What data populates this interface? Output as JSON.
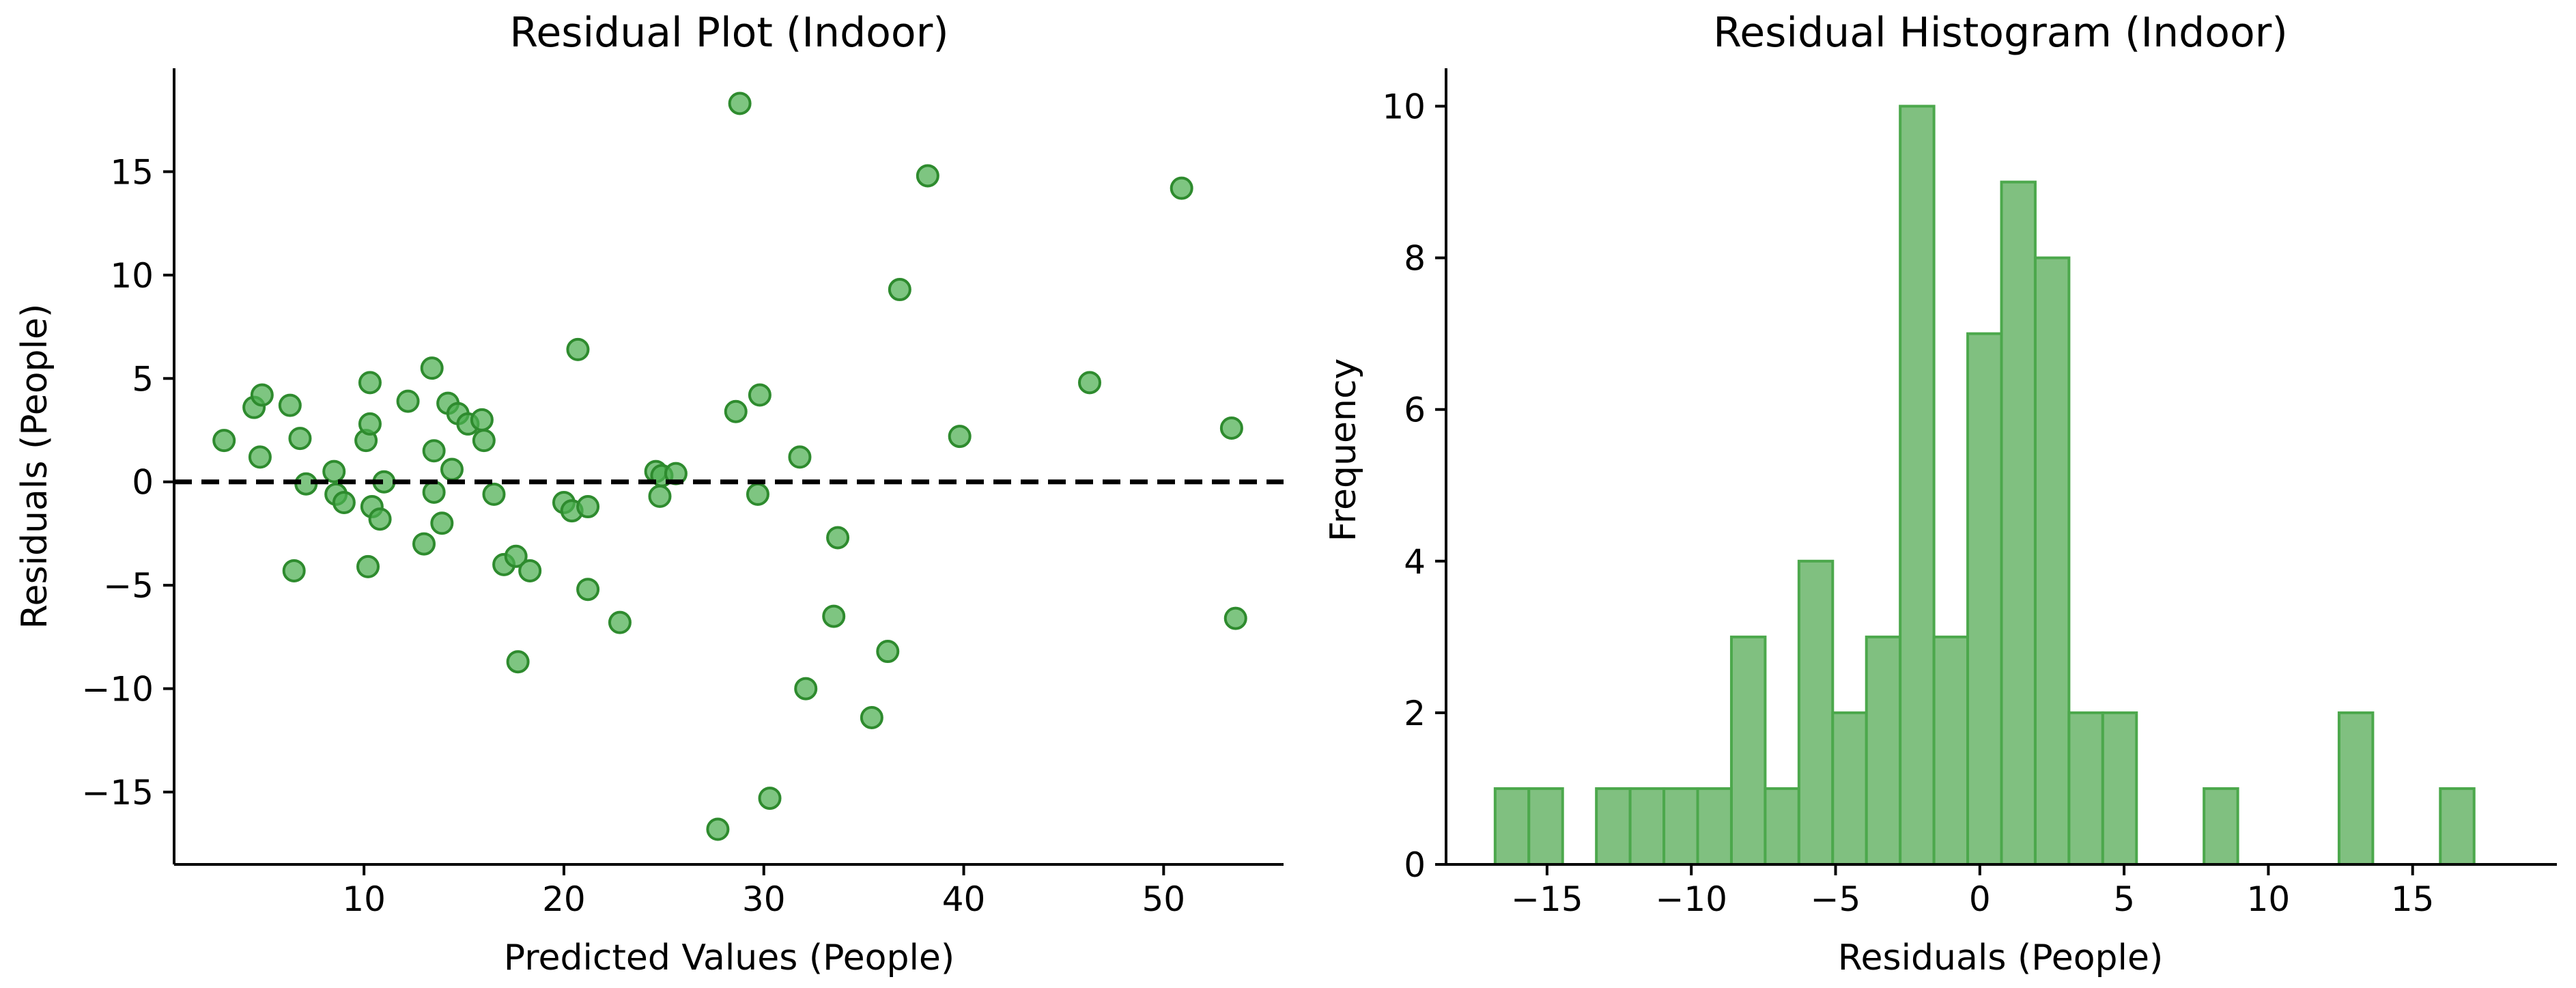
{
  "colors": {
    "marker_fill": "#4CAF50",
    "marker_edge": "#2E8B2E",
    "bar_fill": "#80C080",
    "bar_edge": "#4CA84C",
    "axis": "#000000",
    "reference_line": "#000000"
  },
  "chart_data": [
    {
      "type": "scatter",
      "title": "Residual Plot (Indoor)",
      "xlabel": "Predicted Values (People)",
      "ylabel": "Residuals (People)",
      "xlim": [
        0.5,
        56
      ],
      "ylim": [
        -18.5,
        20
      ],
      "xticks": [
        10,
        20,
        30,
        40,
        50
      ],
      "yticks": [
        -15,
        -10,
        -5,
        0,
        5,
        10,
        15
      ],
      "xtick_labels": [
        "10",
        "20",
        "30",
        "40",
        "50"
      ],
      "ytick_labels": [
        "−15",
        "−10",
        "−5",
        "0",
        "5",
        "10",
        "15"
      ],
      "reference_line": {
        "y": 0,
        "style": "dashed"
      },
      "points": [
        [
          3,
          2
        ],
        [
          4.5,
          3.6
        ],
        [
          4.8,
          1.2
        ],
        [
          4.9,
          4.2
        ],
        [
          6.3,
          3.7
        ],
        [
          6.5,
          -4.3
        ],
        [
          6.8,
          2.1
        ],
        [
          7.1,
          -0.1
        ],
        [
          8.5,
          0.5
        ],
        [
          8.6,
          -0.6
        ],
        [
          9,
          -1
        ],
        [
          10.1,
          2
        ],
        [
          10.2,
          -4.1
        ],
        [
          10.3,
          4.8
        ],
        [
          10.3,
          2.8
        ],
        [
          10.4,
          -1.2
        ],
        [
          10.8,
          -1.8
        ],
        [
          11,
          0
        ],
        [
          12.2,
          3.9
        ],
        [
          13,
          -3
        ],
        [
          13.4,
          5.5
        ],
        [
          13.5,
          1.5
        ],
        [
          13.5,
          -0.5
        ],
        [
          13.9,
          -2
        ],
        [
          14.2,
          3.8
        ],
        [
          14.4,
          0.6
        ],
        [
          14.7,
          3.3
        ],
        [
          15.2,
          2.8
        ],
        [
          15.9,
          3
        ],
        [
          16,
          2
        ],
        [
          16.5,
          -0.6
        ],
        [
          17,
          -4
        ],
        [
          17.6,
          -3.6
        ],
        [
          17.7,
          -8.7
        ],
        [
          18.3,
          -4.3
        ],
        [
          20,
          -1
        ],
        [
          20.4,
          -1.4
        ],
        [
          20.7,
          6.4
        ],
        [
          21.2,
          -5.2
        ],
        [
          21.2,
          -1.2
        ],
        [
          22.8,
          -6.8
        ],
        [
          24.6,
          0.5
        ],
        [
          24.8,
          -0.7
        ],
        [
          24.9,
          0.3
        ],
        [
          25.6,
          0.4
        ],
        [
          27.7,
          -16.8
        ],
        [
          28.6,
          3.4
        ],
        [
          28.8,
          18.3
        ],
        [
          29.7,
          -0.6
        ],
        [
          29.8,
          4.2
        ],
        [
          30.3,
          -15.3
        ],
        [
          31.8,
          1.2
        ],
        [
          32.1,
          -10
        ],
        [
          33.5,
          -6.5
        ],
        [
          33.7,
          -2.7
        ],
        [
          35.4,
          -11.4
        ],
        [
          36.2,
          -8.2
        ],
        [
          36.8,
          9.3
        ],
        [
          38.2,
          14.8
        ],
        [
          39.8,
          2.2
        ],
        [
          46.3,
          4.8
        ],
        [
          50.9,
          14.2
        ],
        [
          53.4,
          2.6
        ],
        [
          53.6,
          -6.6
        ]
      ]
    },
    {
      "type": "bar",
      "subtype": "histogram",
      "title": "Residual Histogram (Indoor)",
      "xlabel": "Residuals (People)",
      "ylabel": "Frequency",
      "xlim": [
        -18.5,
        20
      ],
      "ylim": [
        0,
        10.5
      ],
      "xticks": [
        -15,
        -10,
        -5,
        0,
        5,
        10,
        15
      ],
      "yticks": [
        0,
        2,
        4,
        6,
        8,
        10
      ],
      "xtick_labels": [
        "−15",
        "−10",
        "−5",
        "0",
        "5",
        "10",
        "15"
      ],
      "ytick_labels": [
        "0",
        "2",
        "4",
        "6",
        "8",
        "10"
      ],
      "bin_start": -16.8,
      "bin_width": 1.17,
      "counts": [
        1,
        1,
        0,
        1,
        1,
        1,
        1,
        3,
        1,
        4,
        2,
        3,
        10,
        3,
        7,
        9,
        8,
        2,
        2,
        0,
        0,
        1,
        0,
        0,
        0,
        2,
        0,
        0,
        1
      ]
    }
  ]
}
